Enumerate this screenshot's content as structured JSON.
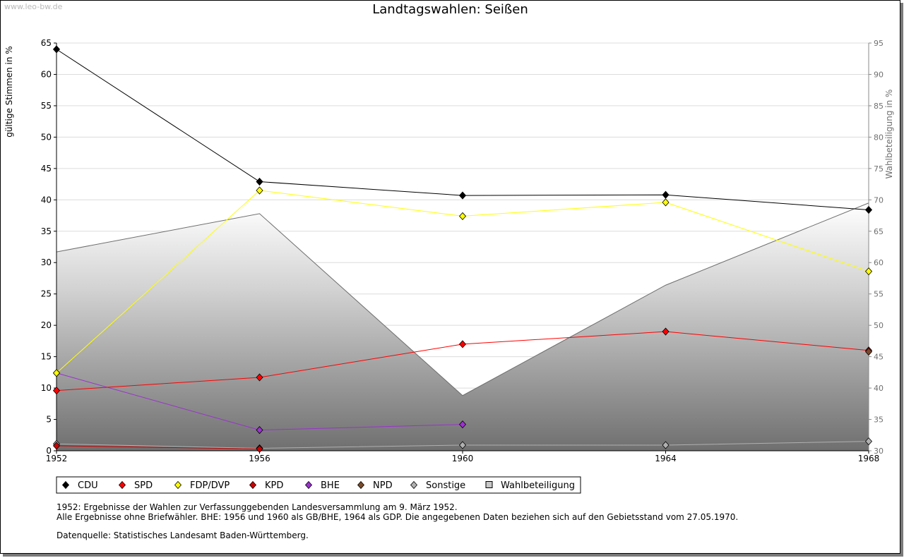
{
  "watermark": "www.leo-bw.de",
  "chart_data": {
    "type": "line",
    "title": "Landtagswahlen: Seißen",
    "x": [
      "1952",
      "1956",
      "1960",
      "1964",
      "1968"
    ],
    "ylabel_left": "gültige Stimmen in %",
    "ylabel_right": "Wahlbeteiligung in %",
    "ylim_left": [
      0,
      65
    ],
    "ylim_right": [
      30,
      95
    ],
    "yticks_left": [
      0,
      5,
      10,
      15,
      20,
      25,
      30,
      35,
      40,
      45,
      50,
      55,
      60,
      65
    ],
    "yticks_right": [
      30,
      35,
      40,
      45,
      50,
      55,
      60,
      65,
      70,
      75,
      80,
      85,
      90,
      95
    ],
    "grid": true,
    "legend_position": "bottom",
    "series": [
      {
        "name": "CDU",
        "color": "#000000",
        "values": [
          64.0,
          42.9,
          40.7,
          40.8,
          38.4
        ]
      },
      {
        "name": "SPD",
        "color": "#ff0000",
        "values": [
          9.6,
          11.7,
          17.0,
          19.0,
          16.0
        ]
      },
      {
        "name": "FDP/DVP",
        "color": "#ffff00",
        "values": [
          12.4,
          41.5,
          37.4,
          39.6,
          28.6
        ]
      },
      {
        "name": "KPD",
        "color": "#cc0000",
        "values": [
          0.8,
          0.3,
          null,
          null,
          null
        ]
      },
      {
        "name": "BHE",
        "color": "#9933cc",
        "values": [
          12.4,
          3.3,
          4.2,
          null,
          null
        ]
      },
      {
        "name": "NPD",
        "color": "#7a4a2a",
        "values": [
          null,
          null,
          null,
          null,
          15.8
        ]
      },
      {
        "name": "Sonstige",
        "color": "#b0b0b0",
        "values": [
          1.1,
          0.4,
          0.9,
          0.9,
          1.5
        ]
      },
      {
        "name": "Wahlbeteiligung",
        "axis": "right",
        "type": "area",
        "color": "#888888",
        "values": [
          61.7,
          67.8,
          38.8,
          56.4,
          69.5
        ]
      }
    ]
  },
  "notes": {
    "line1": "1952: Ergebnisse der Wahlen zur Verfassunggebenden Landesversammlung am 9. März 1952.",
    "line2": "Alle Ergebnisse ohne Briefwähler. BHE: 1956 und 1960 als GB/BHE, 1964 als GDP. Die angegebenen Daten beziehen sich auf den Gebietsstand vom 27.05.1970.",
    "line3": "Datenquelle: Statistisches Landesamt Baden-Württemberg."
  }
}
